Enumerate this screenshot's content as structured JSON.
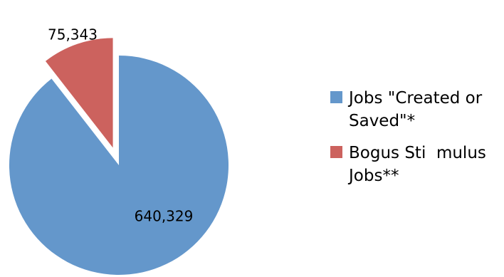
{
  "chart_data": {
    "type": "pie",
    "title": "",
    "categories": [
      "Jobs \"Created or Saved\"*",
      "Bogus Sti  mulus Jobs**"
    ],
    "values": [
      640329,
      75343
    ],
    "data_labels": [
      "640,329",
      "75,343"
    ],
    "colors": [
      "#6497CB",
      "#CC625E"
    ],
    "exploded": [
      false,
      true
    ],
    "legend_position": "right"
  }
}
